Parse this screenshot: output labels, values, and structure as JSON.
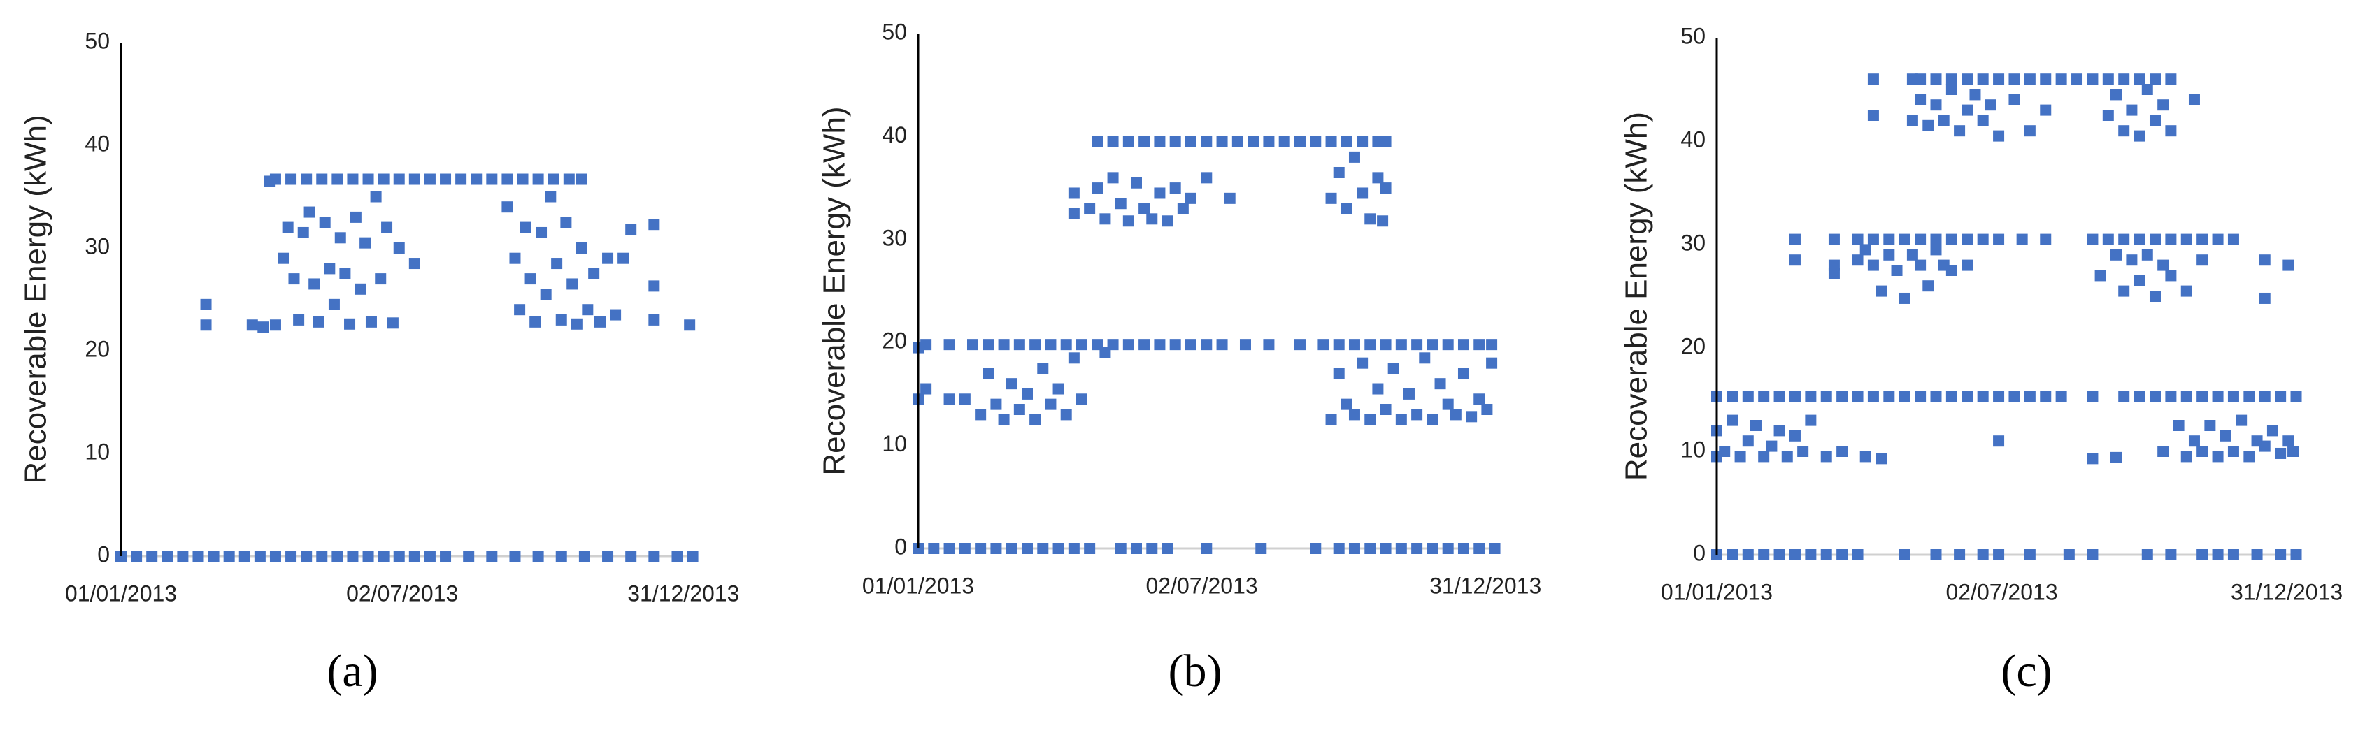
{
  "chart_data": [
    {
      "type": "scatter",
      "label": "(a)",
      "ylabel": "Recoverable Energy (kWh)",
      "color": "#4472c4",
      "xlim": [
        0,
        372
      ],
      "xticks": [
        {
          "value": 0,
          "label": "01/01/2013"
        },
        {
          "value": 182,
          "label": "02/07/2013"
        },
        {
          "value": 364,
          "label": "31/12/2013"
        }
      ],
      "ylim": [
        0,
        50
      ],
      "yticks": [
        0,
        10,
        20,
        30,
        40,
        50
      ],
      "x": [
        0,
        10,
        20,
        30,
        40,
        50,
        60,
        70,
        80,
        90,
        100,
        110,
        120,
        130,
        140,
        150,
        160,
        170,
        180,
        190,
        200,
        210,
        225,
        240,
        255,
        270,
        285,
        300,
        315,
        330,
        345,
        360,
        370,
        55,
        55,
        85,
        92,
        96,
        345,
        345,
        345,
        368,
        330,
        325,
        100,
        110,
        120,
        130,
        140,
        150,
        160,
        170,
        180,
        190,
        200,
        210,
        220,
        230,
        240,
        250,
        260,
        270,
        280,
        290,
        298,
        100,
        105,
        108,
        112,
        115,
        118,
        122,
        125,
        128,
        132,
        135,
        138,
        142,
        145,
        148,
        152,
        155,
        158,
        162,
        165,
        168,
        172,
        176,
        180,
        190,
        250,
        255,
        258,
        262,
        265,
        268,
        272,
        275,
        278,
        282,
        285,
        288,
        292,
        295,
        298,
        302,
        306,
        310,
        315,
        320
      ],
      "values": [
        0,
        0,
        0,
        0,
        0,
        0,
        0,
        0,
        0,
        0,
        0,
        0,
        0,
        0,
        0,
        0,
        0,
        0,
        0,
        0,
        0,
        0,
        0,
        0,
        0,
        0,
        0,
        0,
        0,
        0,
        0,
        0,
        0,
        24.5,
        22.5,
        22.5,
        22.3,
        36.5,
        32.3,
        26.3,
        23,
        22.5,
        31.8,
        29,
        36.7,
        36.7,
        36.7,
        36.7,
        36.7,
        36.7,
        36.7,
        36.7,
        36.7,
        36.7,
        36.7,
        36.7,
        36.7,
        36.7,
        36.7,
        36.7,
        36.7,
        36.7,
        36.7,
        36.7,
        36.7,
        22.5,
        29,
        32,
        27,
        23,
        31.5,
        33.5,
        26.5,
        22.8,
        32.5,
        28,
        24.5,
        31,
        27.5,
        22.6,
        33,
        26,
        30.5,
        22.8,
        35,
        27,
        32,
        22.7,
        30,
        28.5,
        34,
        29,
        24,
        32,
        27,
        22.8,
        31.5,
        25.5,
        35,
        28.5,
        23,
        32.5,
        26.5,
        22.6,
        30,
        24,
        27.5,
        22.8,
        29,
        23.5
      ]
    },
    {
      "type": "scatter",
      "label": "(b)",
      "ylabel": "Recoverable Energy (kWh)",
      "color": "#4472c4",
      "xlim": [
        0,
        372
      ],
      "xticks": [
        {
          "value": 0,
          "label": "01/01/2013"
        },
        {
          "value": 182,
          "label": "02/07/2013"
        },
        {
          "value": 364,
          "label": "31/12/2013"
        }
      ],
      "ylim": [
        0,
        50
      ],
      "yticks": [
        0,
        10,
        20,
        30,
        40,
        50
      ],
      "x": [
        0,
        10,
        20,
        30,
        40,
        50,
        60,
        70,
        80,
        90,
        100,
        110,
        130,
        140,
        150,
        160,
        185,
        220,
        255,
        270,
        280,
        290,
        300,
        310,
        320,
        330,
        340,
        350,
        360,
        370,
        5,
        20,
        35,
        45,
        55,
        65,
        75,
        85,
        95,
        105,
        115,
        125,
        135,
        145,
        155,
        165,
        175,
        185,
        195,
        210,
        225,
        245,
        260,
        270,
        280,
        290,
        300,
        310,
        320,
        330,
        340,
        350,
        360,
        368,
        115,
        125,
        135,
        145,
        155,
        165,
        175,
        185,
        195,
        205,
        215,
        225,
        235,
        245,
        255,
        265,
        275,
        285,
        295,
        300,
        0,
        0,
        5,
        20,
        30,
        40,
        45,
        50,
        55,
        60,
        65,
        70,
        75,
        80,
        85,
        90,
        95,
        100,
        105,
        120,
        265,
        270,
        275,
        280,
        285,
        290,
        295,
        300,
        305,
        310,
        315,
        320,
        325,
        330,
        335,
        340,
        345,
        350,
        355,
        360,
        365,
        368,
        100,
        100,
        110,
        115,
        120,
        125,
        130,
        135,
        140,
        145,
        150,
        155,
        160,
        165,
        170,
        175,
        185,
        200,
        265,
        270,
        275,
        280,
        285,
        290,
        295,
        298,
        300
      ],
      "values": [
        0,
        0,
        0,
        0,
        0,
        0,
        0,
        0,
        0,
        0,
        0,
        0,
        0,
        0,
        0,
        0,
        0,
        0,
        0,
        0,
        0,
        0,
        0,
        0,
        0,
        0,
        0,
        0,
        0,
        0,
        19.8,
        19.8,
        19.8,
        19.8,
        19.8,
        19.8,
        19.8,
        19.8,
        19.8,
        19.8,
        19.8,
        19.8,
        19.8,
        19.8,
        19.8,
        19.8,
        19.8,
        19.8,
        19.8,
        19.8,
        19.8,
        19.8,
        19.8,
        19.8,
        19.8,
        19.8,
        19.8,
        19.8,
        19.8,
        19.8,
        19.8,
        19.8,
        19.8,
        19.8,
        39.5,
        39.5,
        39.5,
        39.5,
        39.5,
        39.5,
        39.5,
        39.5,
        39.5,
        39.5,
        39.5,
        39.5,
        39.5,
        39.5,
        39.5,
        39.5,
        39.5,
        39.5,
        39.5,
        39.5,
        14.5,
        19.5,
        15.5,
        14.5,
        14.5,
        13,
        17,
        14,
        12.5,
        16,
        13.5,
        15,
        12.5,
        17.5,
        14,
        15.5,
        13,
        18.5,
        14.5,
        19,
        12.5,
        17,
        14,
        13,
        18,
        12.5,
        15.5,
        13.5,
        17.5,
        12.5,
        15,
        13,
        18.5,
        12.5,
        16,
        14,
        13,
        17,
        12.8,
        14.5,
        13.5,
        18,
        34.5,
        32.5,
        33,
        35,
        32,
        36,
        33.5,
        31.8,
        35.5,
        33,
        32,
        34.5,
        31.8,
        35,
        33,
        34,
        36,
        34,
        34,
        36.5,
        33,
        38,
        34.5,
        32,
        36,
        31.8,
        35
      ]
    },
    {
      "type": "scatter",
      "label": "(c)",
      "ylabel": "Recoverable Energy (kWh)",
      "color": "#4472c4",
      "xlim": [
        0,
        372
      ],
      "xticks": [
        {
          "value": 0,
          "label": "01/01/2013"
        },
        {
          "value": 182,
          "label": "02/07/2013"
        },
        {
          "value": 364,
          "label": "31/12/2013"
        }
      ],
      "ylim": [
        0,
        50
      ],
      "yticks": [
        0,
        10,
        20,
        30,
        40,
        50
      ],
      "x": [
        0,
        10,
        20,
        30,
        40,
        50,
        60,
        70,
        80,
        90,
        120,
        140,
        155,
        170,
        180,
        200,
        225,
        240,
        275,
        290,
        310,
        320,
        330,
        345,
        360,
        370,
        0,
        10,
        20,
        30,
        40,
        50,
        60,
        70,
        80,
        90,
        100,
        110,
        120,
        130,
        140,
        150,
        160,
        170,
        180,
        190,
        200,
        210,
        220,
        240,
        260,
        270,
        280,
        290,
        300,
        310,
        320,
        330,
        340,
        350,
        360,
        370,
        0,
        0,
        5,
        10,
        15,
        20,
        25,
        30,
        35,
        40,
        45,
        50,
        55,
        60,
        70,
        80,
        95,
        105,
        180,
        240,
        255,
        285,
        295,
        300,
        305,
        310,
        315,
        320,
        325,
        330,
        335,
        340,
        345,
        350,
        355,
        360,
        365,
        368,
        50,
        75,
        90,
        100,
        110,
        120,
        130,
        140,
        150,
        160,
        170,
        180,
        195,
        210,
        240,
        250,
        260,
        270,
        280,
        290,
        300,
        310,
        320,
        330,
        50,
        75,
        75,
        90,
        95,
        100,
        105,
        110,
        115,
        120,
        125,
        130,
        135,
        140,
        145,
        150,
        160,
        245,
        255,
        260,
        265,
        270,
        275,
        280,
        285,
        290,
        300,
        310,
        350,
        350,
        365,
        100,
        125,
        130,
        140,
        150,
        160,
        170,
        180,
        190,
        200,
        210,
        220,
        230,
        240,
        250,
        260,
        270,
        280,
        290,
        100,
        125,
        130,
        135,
        140,
        145,
        150,
        155,
        160,
        165,
        170,
        175,
        180,
        190,
        200,
        210,
        250,
        255,
        260,
        265,
        270,
        275,
        280,
        285,
        290,
        305
      ],
      "values": [
        0,
        0,
        0,
        0,
        0,
        0,
        0,
        0,
        0,
        0,
        0,
        0,
        0,
        0,
        0,
        0,
        0,
        0,
        0,
        0,
        0,
        0,
        0,
        0,
        0,
        0,
        15.3,
        15.3,
        15.3,
        15.3,
        15.3,
        15.3,
        15.3,
        15.3,
        15.3,
        15.3,
        15.3,
        15.3,
        15.3,
        15.3,
        15.3,
        15.3,
        15.3,
        15.3,
        15.3,
        15.3,
        15.3,
        15.3,
        15.3,
        15.3,
        15.3,
        15.3,
        15.3,
        15.3,
        15.3,
        15.3,
        15.3,
        15.3,
        15.3,
        15.3,
        15.3,
        15.3,
        9.5,
        12,
        10,
        13,
        9.5,
        11,
        12.5,
        9.5,
        10.5,
        12,
        9.5,
        11.5,
        10,
        13,
        9.5,
        10,
        9.5,
        9.3,
        11,
        9.3,
        9.4,
        10,
        12.5,
        9.5,
        11,
        10,
        12.5,
        9.5,
        11.5,
        10,
        13,
        9.5,
        11,
        10.5,
        12,
        9.8,
        11,
        10,
        30.5,
        30.5,
        30.5,
        30.5,
        30.5,
        30.5,
        30.5,
        30.5,
        30.5,
        30.5,
        30.5,
        30.5,
        30.5,
        30.5,
        30.5,
        30.5,
        30.5,
        30.5,
        30.5,
        30.5,
        30.5,
        30.5,
        30.5,
        30.5,
        28.5,
        28,
        27.2,
        28.5,
        29.5,
        28,
        25.5,
        29,
        27.5,
        24.8,
        29,
        28,
        26,
        29.5,
        28,
        27.5,
        28,
        27,
        29,
        25.5,
        28.5,
        26.5,
        29,
        25,
        28,
        27,
        25.5,
        28.5,
        28.5,
        24.8,
        28,
        46,
        46,
        46,
        46,
        46,
        46,
        46,
        46,
        46,
        46,
        46,
        46,
        46,
        46,
        46,
        46,
        46,
        46,
        46,
        42.5,
        42,
        44,
        41.5,
        43.5,
        42,
        45,
        41,
        43,
        44.5,
        42,
        43.5,
        40.5,
        44,
        41,
        43,
        42.5,
        44.5,
        41,
        43,
        40.5,
        45,
        42,
        43.5,
        41,
        44
      ]
    }
  ]
}
